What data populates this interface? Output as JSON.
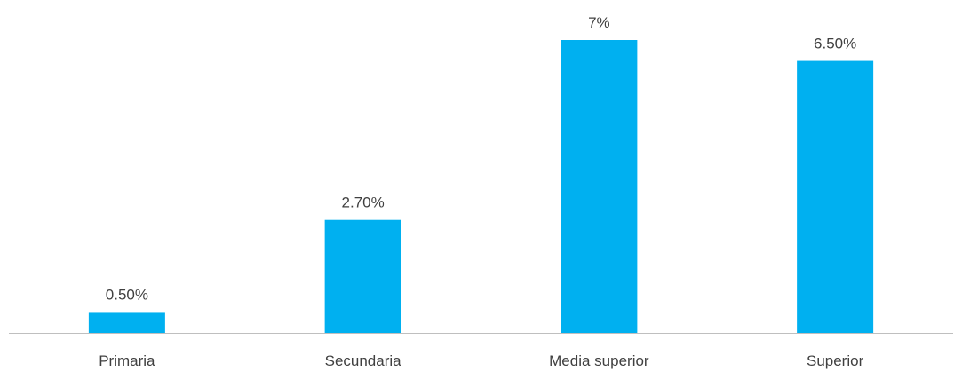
{
  "chart_data": {
    "type": "bar",
    "categories": [
      "Primaria",
      "Secundaria",
      "Media superior",
      "Superior"
    ],
    "values": [
      0.5,
      2.7,
      7,
      6.5
    ],
    "data_labels": [
      "0.50%",
      "2.70%",
      "7%",
      "6.50%"
    ],
    "title": "",
    "xlabel": "",
    "ylabel": "",
    "ylim": [
      0,
      7
    ],
    "grid": false,
    "legend": "none",
    "colors": {
      "bar": "#00B0F0",
      "axis": "#BFBFBF",
      "text": "#404040"
    }
  }
}
